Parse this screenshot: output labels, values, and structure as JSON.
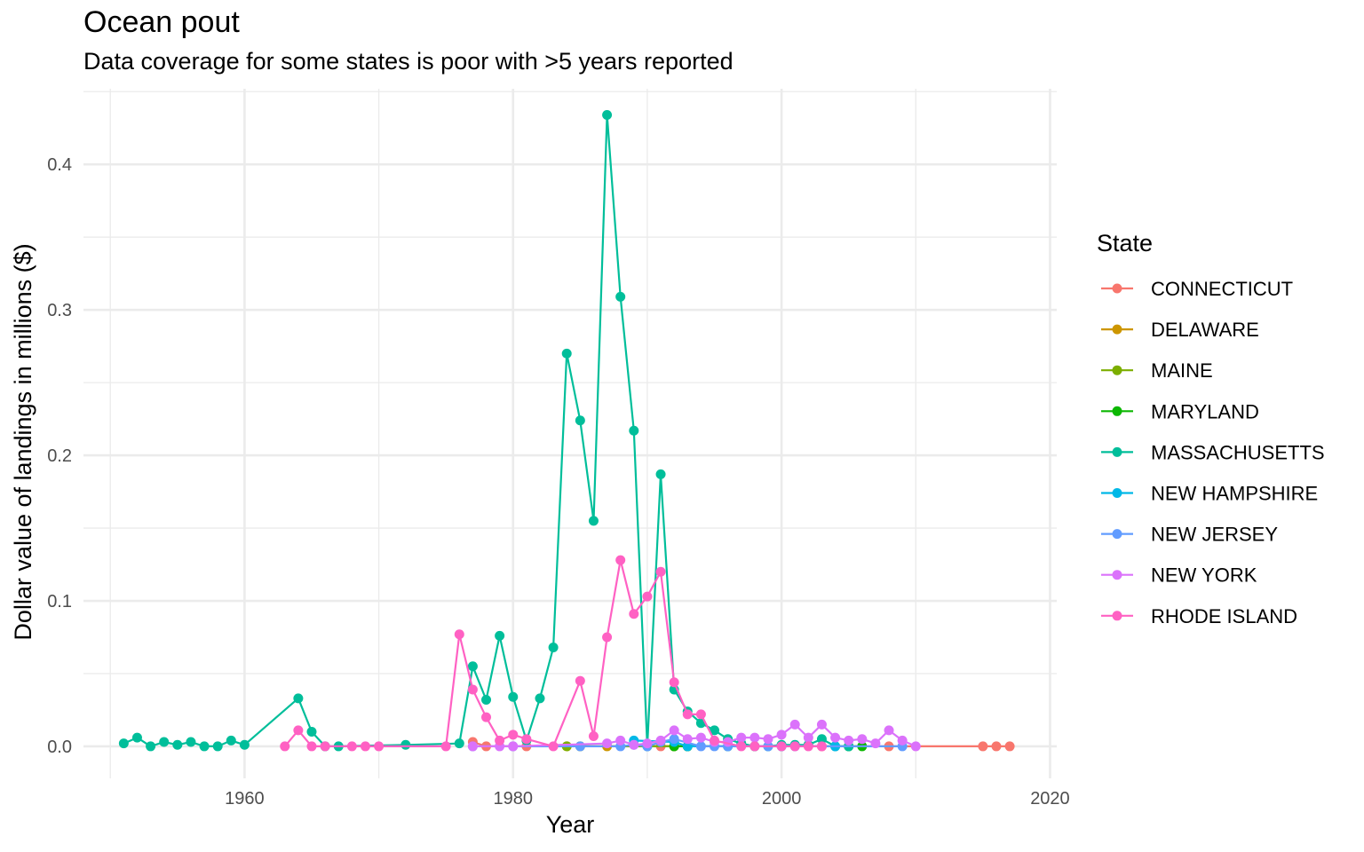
{
  "chart_data": {
    "type": "line",
    "title": "Ocean pout",
    "subtitle": "Data coverage for some states is poor with >5 years reported",
    "xlabel": "Year",
    "ylabel": "Dollar value of landings in millions ($)",
    "xlim": [
      1948,
      2020.5
    ],
    "ylim": [
      -0.022,
      0.452
    ],
    "x_ticks": [
      1960,
      1980,
      2000,
      2020
    ],
    "y_ticks": [
      0.0,
      0.1,
      0.2,
      0.3,
      0.4
    ],
    "x_tick_labels": [
      "1960",
      "1980",
      "2000",
      "2020"
    ],
    "y_tick_labels": [
      "0.0",
      "0.1",
      "0.2",
      "0.3",
      "0.4"
    ],
    "grid": true,
    "markers": true,
    "legend_title": "State",
    "legend_position": "right",
    "series": [
      {
        "name": "CONNECTICUT",
        "color": "#F8766D",
        "x": [
          1977,
          1978,
          1981,
          1991,
          1998,
          2003,
          2008,
          2015,
          2016,
          2017
        ],
        "y": [
          0.003,
          0.0,
          0.0,
          0.0,
          0.0,
          0.0,
          0.0,
          0.0,
          0.0,
          0.0
        ]
      },
      {
        "name": "DELAWARE",
        "color": "#CD9600",
        "x": [
          1984,
          1987,
          1992,
          1993
        ],
        "y": [
          0.0,
          0.0,
          0.0,
          0.0
        ]
      },
      {
        "name": "MAINE",
        "color": "#7CAE00",
        "x": [
          1984,
          1985,
          1992,
          1993,
          1996
        ],
        "y": [
          0.0,
          0.0,
          0.0,
          0.0,
          0.0
        ]
      },
      {
        "name": "MARYLAND",
        "color": "#0CB702",
        "x": [
          1992,
          1993,
          2005,
          2006
        ],
        "y": [
          0.0,
          0.0,
          0.0,
          0.0
        ]
      },
      {
        "name": "MASSACHUSETTS",
        "color": "#00BE9A",
        "x": [
          1951,
          1952,
          1953,
          1954,
          1955,
          1956,
          1957,
          1958,
          1959,
          1960,
          1964,
          1965,
          1966,
          1967,
          1972,
          1976,
          1977,
          1978,
          1979,
          1980,
          1981,
          1982,
          1983,
          1984,
          1985,
          1986,
          1987,
          1988,
          1989,
          1990,
          1991,
          1992,
          1993,
          1994,
          1995,
          1996,
          1997,
          1998,
          1999,
          2000,
          2001,
          2002,
          2003,
          2004,
          2005
        ],
        "y": [
          0.002,
          0.006,
          0.0,
          0.003,
          0.001,
          0.003,
          0.0,
          0.0,
          0.004,
          0.001,
          0.033,
          0.01,
          0.0,
          0.0,
          0.001,
          0.002,
          0.055,
          0.032,
          0.076,
          0.034,
          0.004,
          0.033,
          0.068,
          0.27,
          0.224,
          0.155,
          0.434,
          0.309,
          0.217,
          0.0,
          0.187,
          0.039,
          0.024,
          0.016,
          0.011,
          0.005,
          0.002,
          0.0,
          0.0,
          0.001,
          0.001,
          0.001,
          0.005,
          0.0,
          0.0
        ]
      },
      {
        "name": "NEW HAMPSHIRE",
        "color": "#00B8E7",
        "x": [
          1989,
          1992,
          1993,
          1996,
          2000,
          2004
        ],
        "y": [
          0.004,
          0.003,
          0.0,
          0.0,
          0.0,
          0.0
        ]
      },
      {
        "name": "NEW JERSEY",
        "color": "#619CFF",
        "x": [
          1977,
          1980,
          1985,
          1988,
          1989,
          1990,
          1991,
          1992,
          1994,
          1995,
          1996,
          1999,
          2001,
          2009
        ],
        "y": [
          0.0,
          0.0,
          0.0,
          0.0,
          0.001,
          0.0,
          0.003,
          0.005,
          0.0,
          0.0,
          0.0,
          0.0,
          0.0,
          0.0
        ]
      },
      {
        "name": "NEW YORK",
        "color": "#DB72FB",
        "x": [
          1977,
          1979,
          1980,
          1987,
          1988,
          1989,
          1990,
          1991,
          1992,
          1993,
          1994,
          1995,
          1996,
          1997,
          1998,
          1999,
          2000,
          2001,
          2002,
          2003,
          2004,
          2005,
          2006,
          2007,
          2008,
          2009,
          2010
        ],
        "y": [
          0.0,
          0.0,
          0.0,
          0.002,
          0.004,
          0.001,
          0.002,
          0.004,
          0.011,
          0.005,
          0.006,
          0.003,
          0.003,
          0.006,
          0.006,
          0.005,
          0.008,
          0.015,
          0.006,
          0.015,
          0.006,
          0.004,
          0.005,
          0.002,
          0.011,
          0.004,
          0.0
        ]
      },
      {
        "name": "RHODE ISLAND",
        "color": "#FF61C3",
        "x": [
          1963,
          1964,
          1965,
          1966,
          1968,
          1969,
          1970,
          1975,
          1976,
          1977,
          1978,
          1979,
          1980,
          1981,
          1983,
          1985,
          1986,
          1987,
          1988,
          1989,
          1990,
          1991,
          1992,
          1993,
          1994,
          1995,
          1997,
          1998,
          2000,
          2001,
          2002,
          2003
        ],
        "y": [
          0.0,
          0.011,
          0.0,
          0.0,
          0.0,
          0.0,
          0.0,
          0.0,
          0.077,
          0.039,
          0.02,
          0.004,
          0.008,
          0.005,
          0.0,
          0.045,
          0.007,
          0.075,
          0.128,
          0.091,
          0.103,
          0.12,
          0.044,
          0.022,
          0.022,
          0.004,
          0.0,
          0.0,
          0.0,
          0.0,
          0.0,
          0.0
        ]
      }
    ]
  }
}
